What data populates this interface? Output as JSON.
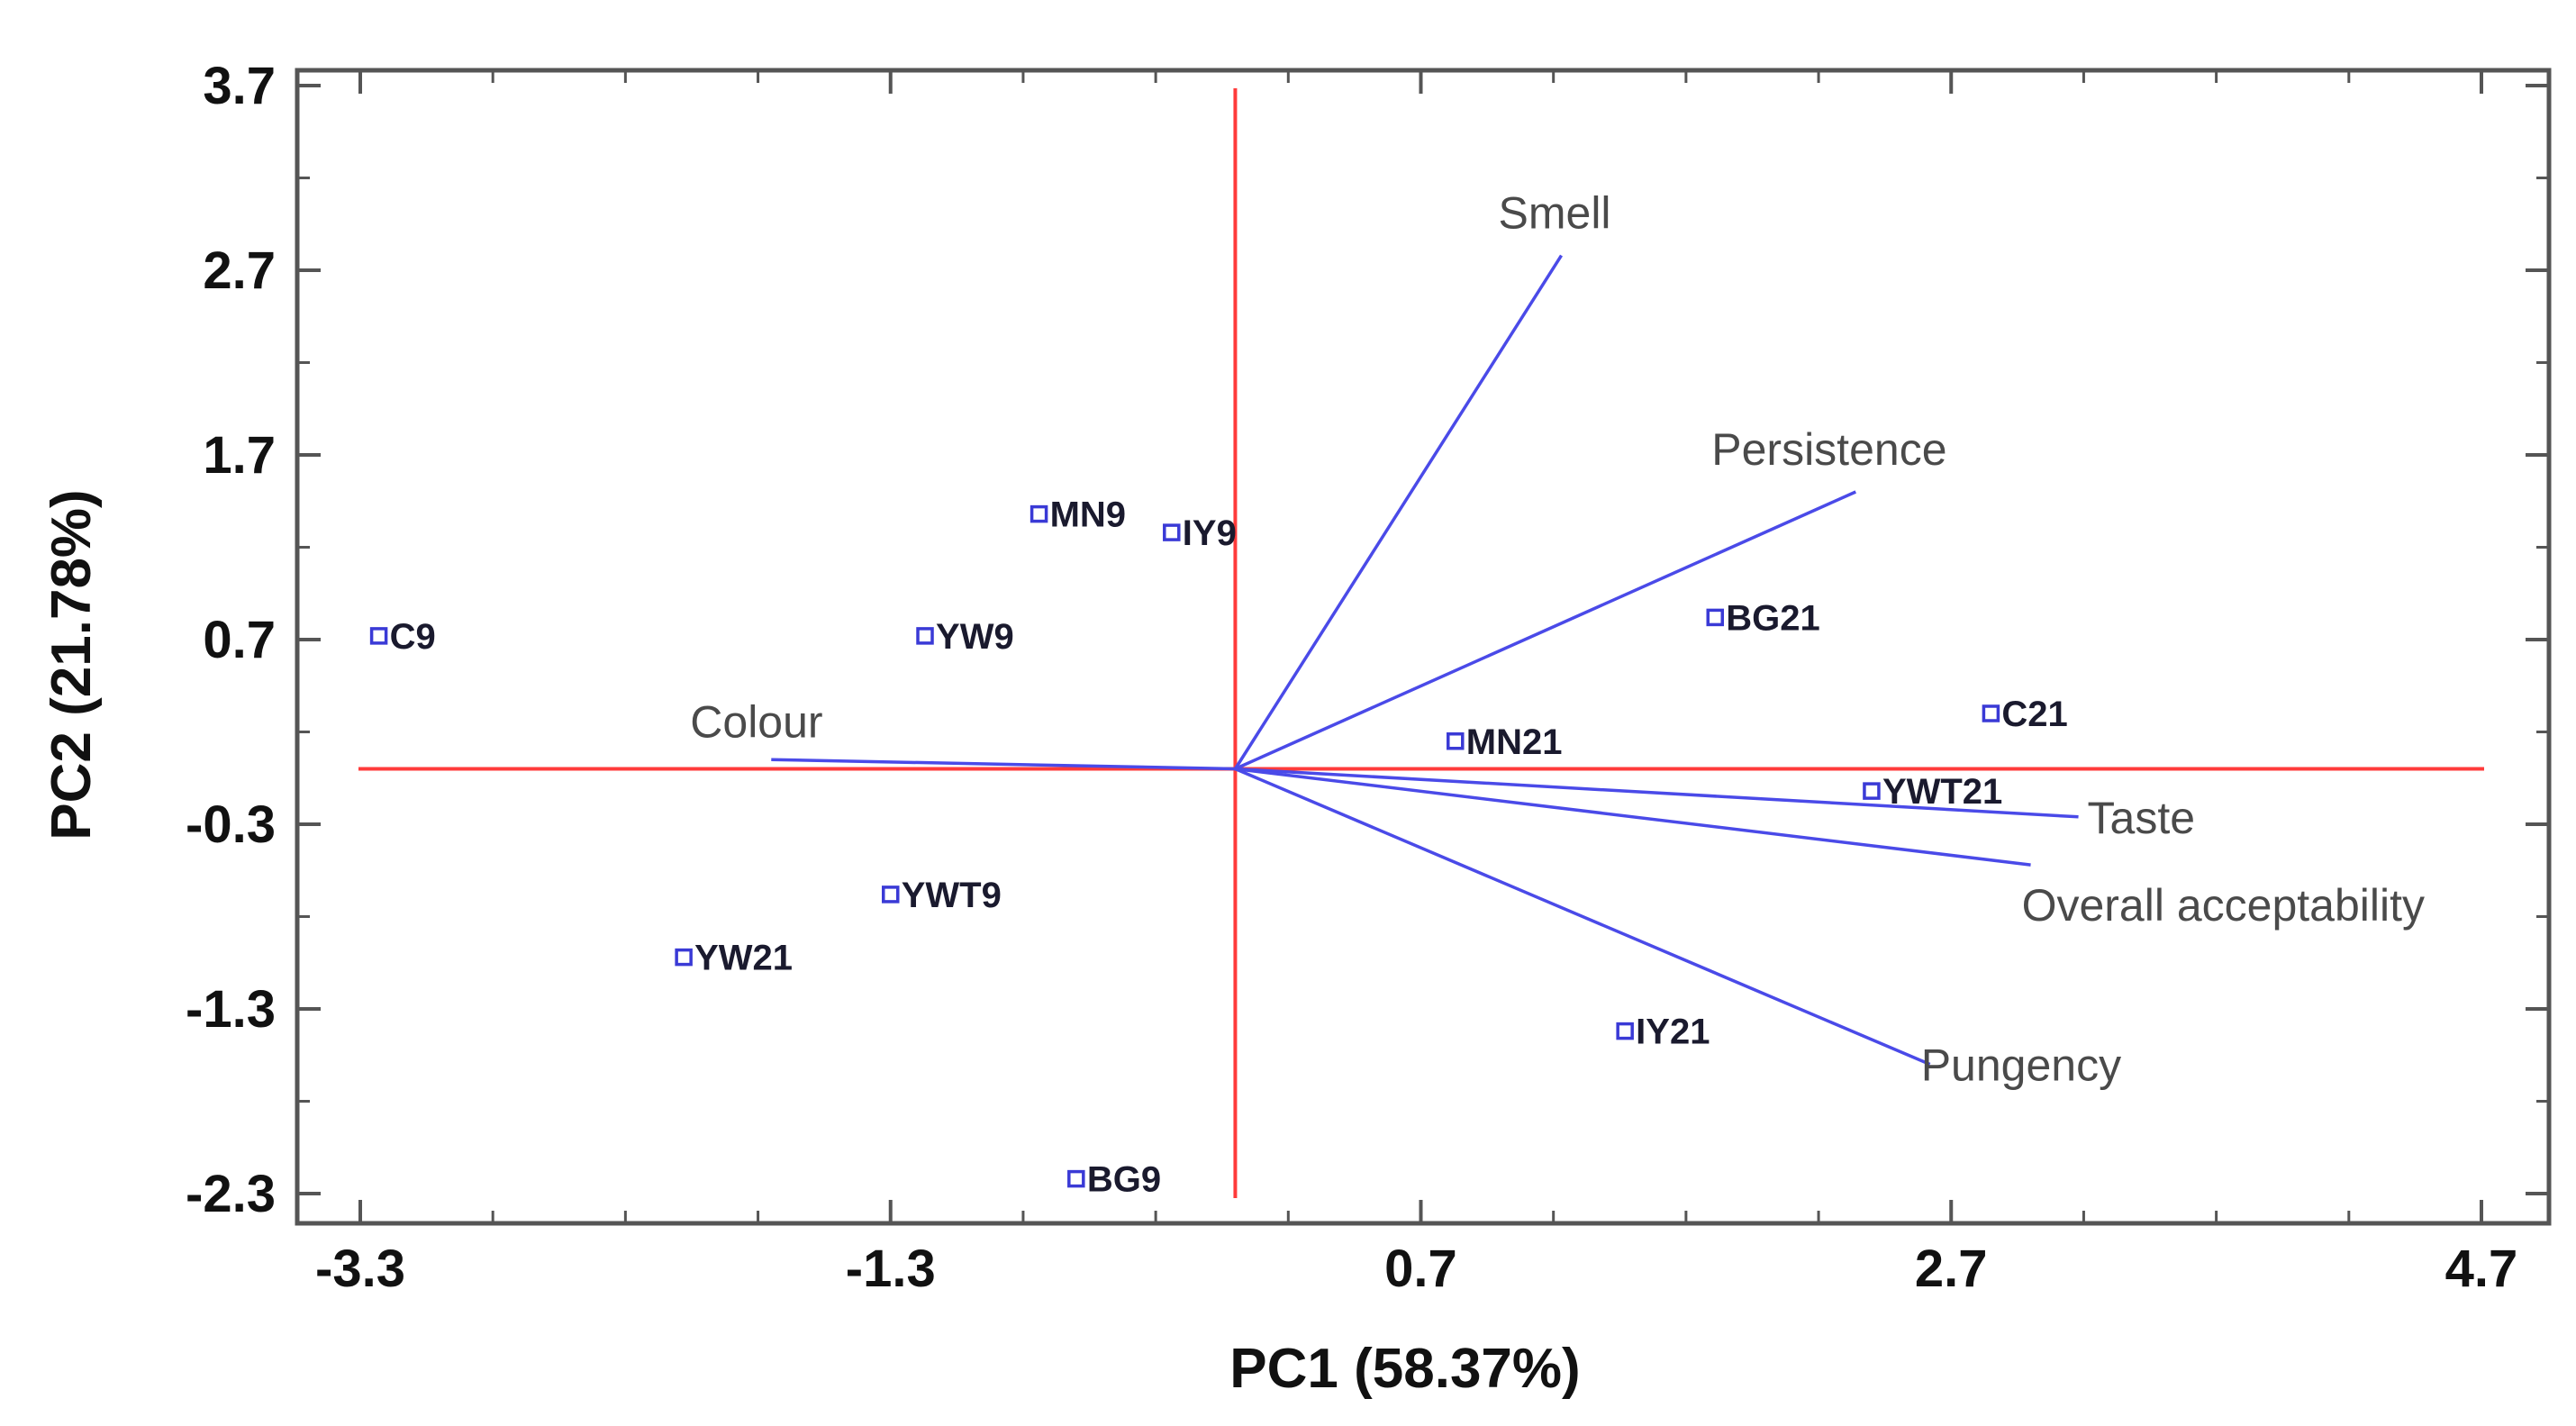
{
  "chart_data": {
    "type": "scatter",
    "subtype": "pca-biplot",
    "xlabel": "PC1 (58.37%)",
    "ylabel": "PC2 (21.78%)",
    "xlim": [
      -3.3,
      4.7
    ],
    "ylim": [
      -2.3,
      3.7
    ],
    "x_ticks": [
      -3.3,
      -1.3,
      0.7,
      2.7,
      4.7
    ],
    "x_tick_labels": [
      "-3.3",
      "-1.3",
      "0.7",
      "2.7",
      "4.7"
    ],
    "y_ticks": [
      3.7,
      2.7,
      1.7,
      0.7,
      -0.3,
      -1.3,
      -2.3
    ],
    "y_tick_labels": [
      "3.7",
      "2.7",
      "1.7",
      "0.7",
      "-0.3",
      "-1.3",
      "-2.3"
    ],
    "minor_tick_step": 0.5,
    "reference_lines": {
      "x": 0,
      "y": 0,
      "color": "#ff3b3b"
    },
    "point_color": "#3a3ad6",
    "vector_color": "#4a4ae8",
    "points": [
      {
        "label": "C9",
        "x": -3.23,
        "y": 0.72
      },
      {
        "label": "MN9",
        "x": -0.74,
        "y": 1.38
      },
      {
        "label": "IY9",
        "x": -0.24,
        "y": 1.28
      },
      {
        "label": "YW9",
        "x": -1.17,
        "y": 0.72
      },
      {
        "label": "BG21",
        "x": 1.81,
        "y": 0.82
      },
      {
        "label": "MN21",
        "x": 0.83,
        "y": 0.15
      },
      {
        "label": "C21",
        "x": 2.85,
        "y": 0.3
      },
      {
        "label": "YWT21",
        "x": 2.4,
        "y": -0.12
      },
      {
        "label": "YWT9",
        "x": -1.3,
        "y": -0.68
      },
      {
        "label": "YW21",
        "x": -2.08,
        "y": -1.02
      },
      {
        "label": "IY21",
        "x": 1.47,
        "y": -1.42
      },
      {
        "label": "BG9",
        "x": -0.6,
        "y": -2.22
      }
    ],
    "vectors": [
      {
        "label": "Smell",
        "x": 1.23,
        "y": 2.78
      },
      {
        "label": "Persistence",
        "x": 2.34,
        "y": 1.5
      },
      {
        "label": "Colour",
        "x": -1.75,
        "y": 0.05
      },
      {
        "label": "Taste",
        "x": 3.18,
        "y": -0.26
      },
      {
        "label": "Overall acceptability",
        "x": 3.0,
        "y": -0.52
      },
      {
        "label": "Pungency",
        "x": 2.62,
        "y": -1.6
      }
    ]
  }
}
